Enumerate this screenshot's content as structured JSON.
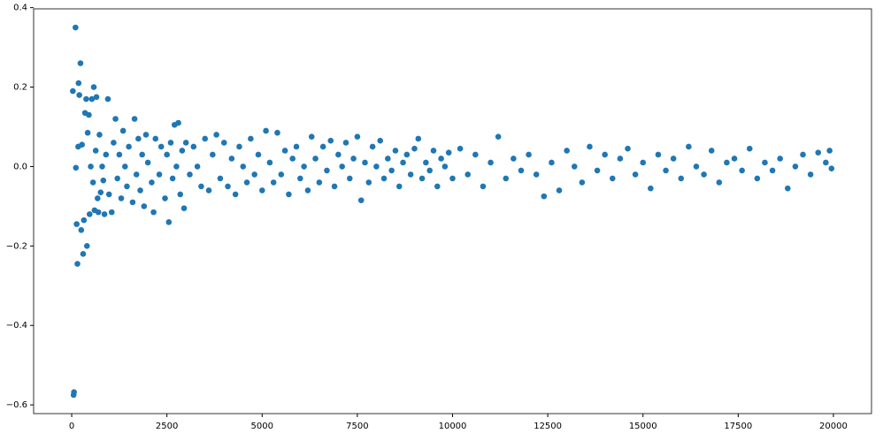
{
  "chart_data": {
    "type": "scatter",
    "color": "#1f77b4",
    "xlim": [
      -1000,
      21000
    ],
    "ylim": [
      -0.622,
      0.397
    ],
    "xticks": [
      0,
      2500,
      5000,
      7500,
      10000,
      12500,
      15000,
      17500,
      20000
    ],
    "yticks": [
      {
        "value": -0.6,
        "label": "−0.6"
      },
      {
        "value": -0.4,
        "label": "−0.4"
      },
      {
        "value": -0.2,
        "label": "−0.2"
      },
      {
        "value": 0,
        "label": "0.0"
      },
      0.2,
      0.4
    ],
    "x": [
      30,
      50,
      60,
      100,
      110,
      130,
      150,
      170,
      180,
      200,
      230,
      250,
      270,
      300,
      320,
      350,
      380,
      400,
      420,
      450,
      470,
      500,
      530,
      560,
      580,
      600,
      630,
      650,
      680,
      700,
      730,
      760,
      800,
      830,
      860,
      900,
      950,
      980,
      1050,
      1100,
      1150,
      1200,
      1250,
      1300,
      1350,
      1400,
      1450,
      1500,
      1600,
      1650,
      1700,
      1750,
      1800,
      1850,
      1900,
      1950,
      2000,
      2100,
      2150,
      2200,
      2300,
      2350,
      2450,
      2500,
      2550,
      2600,
      2650,
      2700,
      2750,
      2800,
      2850,
      2900,
      2950,
      3000,
      3100,
      3200,
      3300,
      3400,
      3500,
      3600,
      3700,
      3800,
      3900,
      4000,
      4100,
      4200,
      4300,
      4400,
      4500,
      4600,
      4700,
      4800,
      4900,
      5000,
      5100,
      5200,
      5300,
      5400,
      5500,
      5600,
      5700,
      5800,
      5900,
      6000,
      6100,
      6200,
      6300,
      6400,
      6500,
      6600,
      6700,
      6800,
      6900,
      7000,
      7100,
      7200,
      7300,
      7400,
      7500,
      7600,
      7700,
      7800,
      7900,
      8000,
      8100,
      8200,
      8300,
      8400,
      8500,
      8600,
      8700,
      8800,
      8900,
      9000,
      9100,
      9200,
      9300,
      9400,
      9500,
      9600,
      9700,
      9800,
      9900,
      10000,
      10200,
      10400,
      10600,
      10800,
      11000,
      11200,
      11400,
      11600,
      11800,
      12000,
      12200,
      12400,
      12600,
      12800,
      13000,
      13200,
      13400,
      13600,
      13800,
      14000,
      14200,
      14400,
      14600,
      14800,
      15000,
      15200,
      15400,
      15600,
      15800,
      16000,
      16200,
      16400,
      16600,
      16800,
      17000,
      17200,
      17400,
      17600,
      17800,
      18000,
      18200,
      18400,
      18600,
      18800,
      19000,
      19200,
      19400,
      19600,
      19800,
      19900,
      19950
    ],
    "values": [
      0.19,
      -0.575,
      -0.568,
      0.35,
      -0.003,
      -0.145,
      -0.245,
      0.05,
      0.21,
      0.18,
      0.26,
      -0.16,
      0.055,
      -0.22,
      -0.135,
      0.135,
      0.17,
      -0.2,
      0.085,
      0.13,
      -0.12,
      0.0,
      0.17,
      -0.04,
      0.2,
      -0.11,
      0.04,
      0.175,
      -0.08,
      -0.115,
      0.08,
      -0.065,
      0.0,
      -0.035,
      -0.12,
      0.03,
      0.17,
      -0.07,
      -0.115,
      0.06,
      0.12,
      -0.03,
      0.03,
      -0.08,
      0.09,
      0.0,
      -0.05,
      0.05,
      -0.09,
      0.12,
      -0.02,
      0.07,
      -0.06,
      0.03,
      -0.1,
      0.08,
      0.01,
      -0.04,
      -0.115,
      0.07,
      -0.02,
      0.05,
      -0.08,
      0.03,
      -0.14,
      0.06,
      -0.03,
      0.105,
      0.0,
      0.11,
      -0.07,
      0.04,
      -0.105,
      0.06,
      -0.02,
      0.05,
      0.0,
      -0.05,
      0.07,
      -0.06,
      0.03,
      0.08,
      -0.03,
      0.06,
      -0.05,
      0.02,
      -0.07,
      0.05,
      0.0,
      -0.04,
      0.07,
      -0.02,
      0.03,
      -0.06,
      0.09,
      0.01,
      -0.04,
      0.085,
      -0.02,
      0.04,
      -0.07,
      0.02,
      0.05,
      -0.03,
      0.0,
      -0.06,
      0.075,
      0.02,
      -0.04,
      0.05,
      -0.01,
      0.065,
      -0.05,
      0.03,
      0.0,
      0.06,
      -0.03,
      0.02,
      0.075,
      -0.085,
      0.01,
      -0.04,
      0.05,
      0.0,
      0.065,
      -0.03,
      0.02,
      -0.01,
      0.04,
      -0.05,
      0.01,
      0.03,
      -0.02,
      0.045,
      0.07,
      -0.03,
      0.01,
      -0.01,
      0.04,
      -0.05,
      0.02,
      0.0,
      0.035,
      -0.03,
      0.045,
      -0.02,
      0.03,
      -0.05,
      0.01,
      0.075,
      -0.03,
      0.02,
      -0.01,
      0.03,
      -0.02,
      -0.075,
      0.01,
      -0.06,
      0.04,
      0.0,
      -0.04,
      0.05,
      -0.01,
      0.03,
      -0.03,
      0.02,
      0.045,
      -0.02,
      0.01,
      -0.055,
      0.03,
      -0.01,
      0.02,
      -0.03,
      0.05,
      0.0,
      -0.02,
      0.04,
      -0.04,
      0.01,
      0.02,
      -0.01,
      0.045,
      -0.03,
      0.01,
      -0.01,
      0.02,
      -0.055,
      0.0,
      0.03,
      -0.02,
      0.035,
      0.01,
      0.04,
      -0.005
    ]
  }
}
